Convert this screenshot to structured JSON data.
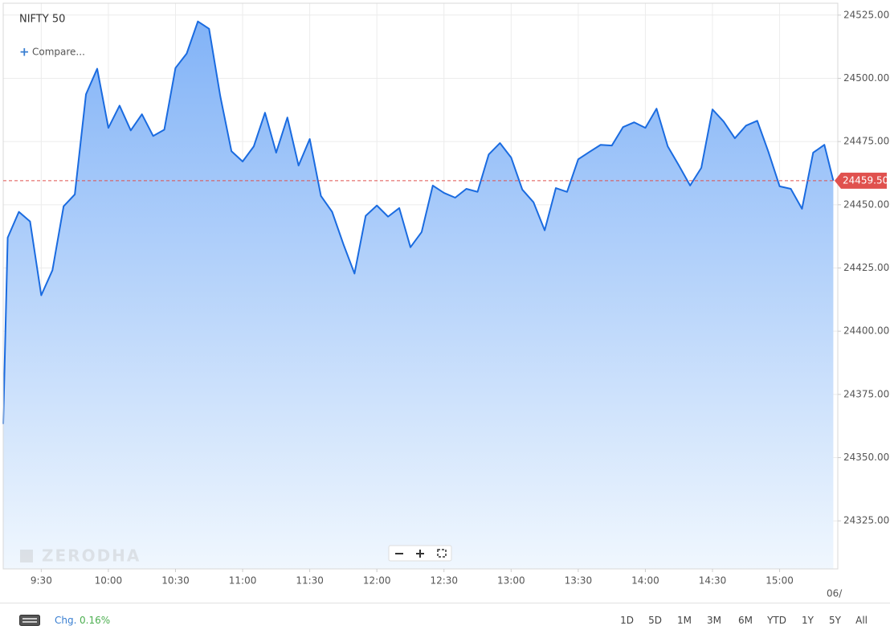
{
  "header": {
    "title": "NIFTY 50",
    "compare": "Compare..."
  },
  "watermark": "ZERODHA",
  "chart_data": {
    "type": "area",
    "x": [
      "9:13",
      "9:15",
      "9:20",
      "9:25",
      "9:30",
      "9:35",
      "9:40",
      "9:45",
      "9:50",
      "9:55",
      "10:00",
      "10:05",
      "10:10",
      "10:15",
      "10:20",
      "10:25",
      "10:30",
      "10:35",
      "10:40",
      "10:45",
      "10:50",
      "10:55",
      "11:00",
      "11:05",
      "11:10",
      "11:15",
      "11:20",
      "11:25",
      "11:30",
      "11:35",
      "11:40",
      "11:45",
      "11:50",
      "11:55",
      "12:00",
      "12:05",
      "12:10",
      "12:15",
      "12:20",
      "12:25",
      "12:30",
      "12:35",
      "12:40",
      "12:45",
      "12:50",
      "12:55",
      "13:00",
      "13:05",
      "13:10",
      "13:15",
      "13:20",
      "13:25",
      "13:30",
      "13:35",
      "13:40",
      "13:45",
      "13:50",
      "13:55",
      "14:00",
      "14:05",
      "14:10",
      "14:15",
      "14:20",
      "14:25",
      "14:30",
      "14:35",
      "14:40",
      "14:45",
      "14:50",
      "14:55",
      "15:00",
      "15:05",
      "15:10",
      "15:15",
      "15:20",
      "15:24"
    ],
    "values": [
      24363.3,
      24437.0,
      24447.2,
      24443.4,
      24414.2,
      24424.1,
      24449.4,
      24454.1,
      24493.7,
      24503.8,
      24480.4,
      24489.2,
      24479.4,
      24485.8,
      24477.2,
      24479.7,
      24504.1,
      24509.8,
      24522.5,
      24519.6,
      24493.0,
      24471.2,
      24467.1,
      24473.1,
      24486.4,
      24470.6,
      24484.5,
      24465.5,
      24476.0,
      24453.5,
      24447.2,
      24434.5,
      24422.8,
      24445.6,
      24449.7,
      24445.3,
      24448.7,
      24433.2,
      24439.2,
      24457.6,
      24454.7,
      24452.8,
      24456.3,
      24455.1,
      24469.9,
      24474.4,
      24468.7,
      24456.0,
      24451.0,
      24439.9,
      24456.6,
      24455.1,
      24468.0,
      24470.9,
      24473.7,
      24473.4,
      24480.7,
      24482.6,
      24480.4,
      24488.0,
      24473.1,
      24465.5,
      24457.6,
      24464.6,
      24487.7,
      24482.9,
      24476.3,
      24481.3,
      24483.2,
      24470.9,
      24457.3,
      24456.3,
      24448.4,
      24470.6,
      24473.7,
      24459.5
    ],
    "color": "#1a6be0",
    "xlim": [
      "9:13",
      "15:26"
    ],
    "ylim": [
      24306,
      24529.7
    ],
    "xticks": [
      "9:30",
      "10:00",
      "10:30",
      "11:00",
      "11:30",
      "12:00",
      "12:30",
      "13:00",
      "13:30",
      "14:00",
      "14:30",
      "15:00"
    ],
    "yticks": [
      {
        "value": 24325,
        "label": "24325.00"
      },
      {
        "value": 24350,
        "label": "24350.00"
      },
      {
        "value": 24375,
        "label": "24375.00"
      },
      {
        "value": 24400,
        "label": "24400.00"
      },
      {
        "value": 24425,
        "label": "24425.00"
      },
      {
        "value": 24450,
        "label": "24450.00"
      },
      {
        "value": 24475,
        "label": "24475.00"
      },
      {
        "value": 24500,
        "label": "24500.00"
      },
      {
        "value": 24525,
        "label": "24525.00"
      }
    ],
    "grid": true,
    "last_price": {
      "value": 24459.5,
      "label": "24459.50"
    },
    "x_end_label": "06/"
  },
  "footer": {
    "change_label": "Chg.",
    "change": "0.16%",
    "ranges": [
      "1D",
      "5D",
      "1M",
      "3M",
      "6M",
      "YTD",
      "1Y",
      "5Y",
      "All"
    ]
  }
}
